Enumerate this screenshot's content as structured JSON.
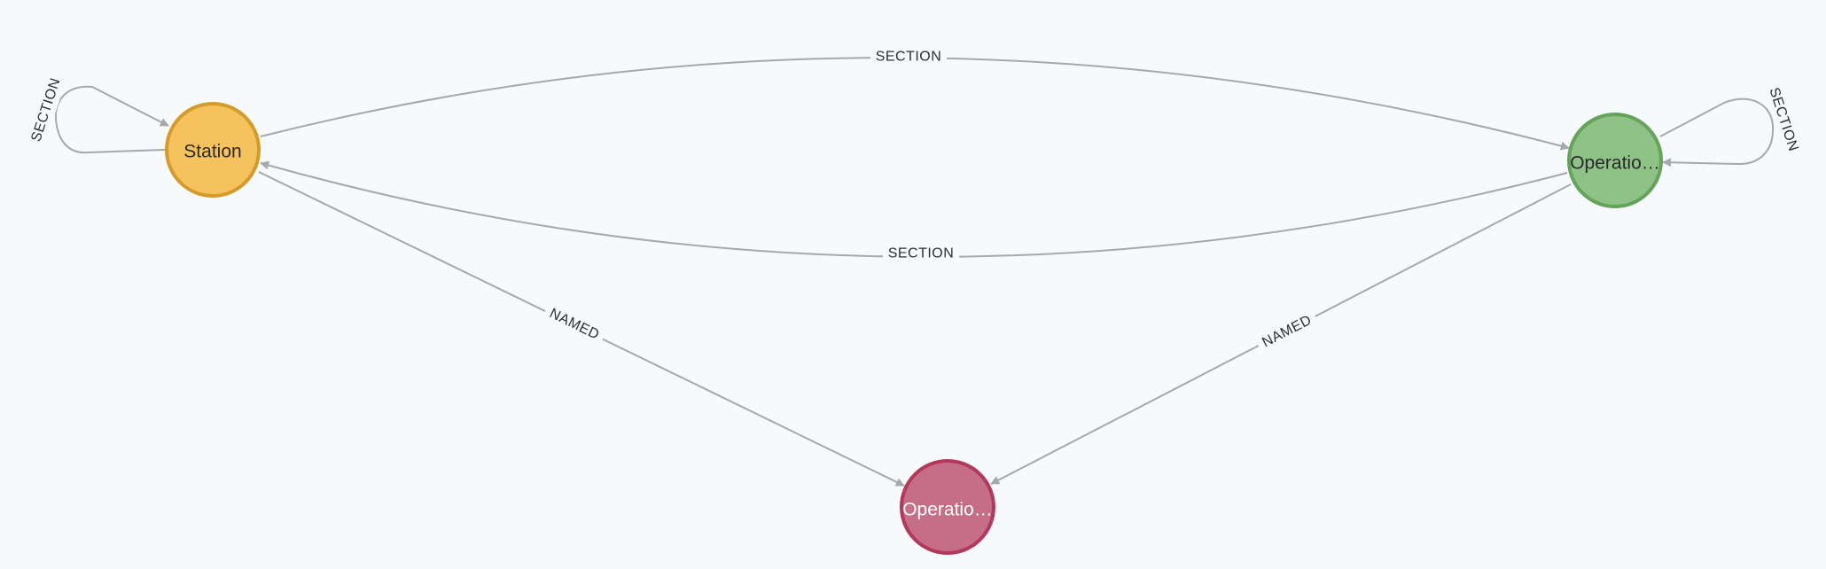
{
  "nodes": [
    {
      "id": "station",
      "caption": "Station",
      "fill": "#f6c25d",
      "stroke": "#d59b29",
      "text_color": "#2a2a2a"
    },
    {
      "id": "operation_green",
      "caption": "Operatio…",
      "fill": "#8fc286",
      "stroke": "#64a35a",
      "text_color": "#2a2a2a"
    },
    {
      "id": "operation_red",
      "caption": "Operatio…",
      "fill": "#c66e87",
      "stroke": "#b2385c",
      "text_color": "#ffffff"
    }
  ],
  "relationships": [
    {
      "id": "rel-section-self-station",
      "type": "SECTION",
      "from": "station",
      "to": "station"
    },
    {
      "id": "rel-section-station-green",
      "type": "SECTION",
      "from": "station",
      "to": "operation_green"
    },
    {
      "id": "rel-section-self-green",
      "type": "SECTION",
      "from": "operation_green",
      "to": "operation_green"
    },
    {
      "id": "rel-section-green-station",
      "type": "SECTION",
      "from": "operation_green",
      "to": "station"
    },
    {
      "id": "rel-named-station-red",
      "type": "NAMED",
      "from": "station",
      "to": "operation_red"
    },
    {
      "id": "rel-named-green-red",
      "type": "NAMED",
      "from": "operation_green",
      "to": "operation_red"
    }
  ],
  "colors": {
    "background": "#f6fafd",
    "relationship": "#a5a9ae",
    "label": "#2b2f33"
  }
}
